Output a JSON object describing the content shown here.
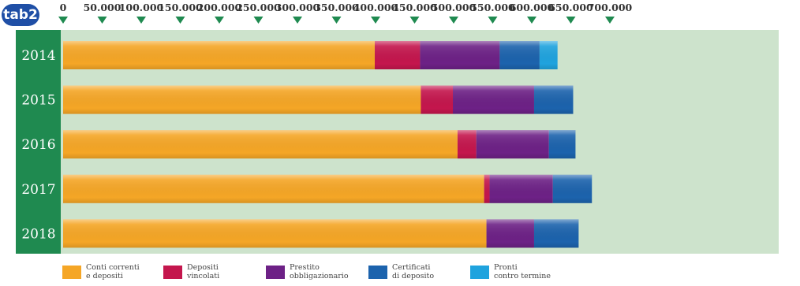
{
  "badge": "tab2",
  "chart_data": {
    "type": "bar",
    "orientation": "horizontal",
    "stacked": true,
    "categories": [
      "2014",
      "2015",
      "2016",
      "2017",
      "2018"
    ],
    "xlim": [
      0,
      700000
    ],
    "x_ticks": [
      "0",
      "50.000",
      "100.000",
      "150.000",
      "200.000",
      "250.000",
      "300.000",
      "350.000",
      "400.000",
      "450.000",
      "500.000",
      "550.000",
      "600.000",
      "650.000",
      "700.000"
    ],
    "series": [
      {
        "name": "Conti correnti e depositi",
        "legend_lines": [
          "Conti correnti",
          "e depositi"
        ],
        "color": "#f5a626",
        "values": [
          399000,
          458000,
          505000,
          539000,
          542000
        ]
      },
      {
        "name": "Depositi vincolati",
        "legend_lines": [
          "Depositi",
          "vincolati"
        ],
        "color": "#c4164d",
        "values": [
          58000,
          41000,
          24000,
          7000,
          0
        ]
      },
      {
        "name": "Prestito obbligazionario",
        "legend_lines": [
          "Prestito",
          "obbligazionario"
        ],
        "color": "#6d2186",
        "values": [
          102000,
          104000,
          93000,
          81000,
          61000
        ]
      },
      {
        "name": "Certificati di deposito",
        "legend_lines": [
          "Certificati",
          "di deposito"
        ],
        "color": "#1c63ad",
        "values": [
          51000,
          50000,
          34000,
          50000,
          57000
        ]
      },
      {
        "name": "Pronti contro termine",
        "legend_lines": [
          "Pronti",
          "contro termine"
        ],
        "color": "#1fa3de",
        "values": [
          23000,
          0,
          0,
          0,
          0
        ]
      }
    ],
    "legend_position": "bottom",
    "grid": false,
    "colors": {
      "plot_background": "#cde3cc",
      "year_column": "#1f8a50",
      "tick_marker": "#1f8a50"
    }
  }
}
